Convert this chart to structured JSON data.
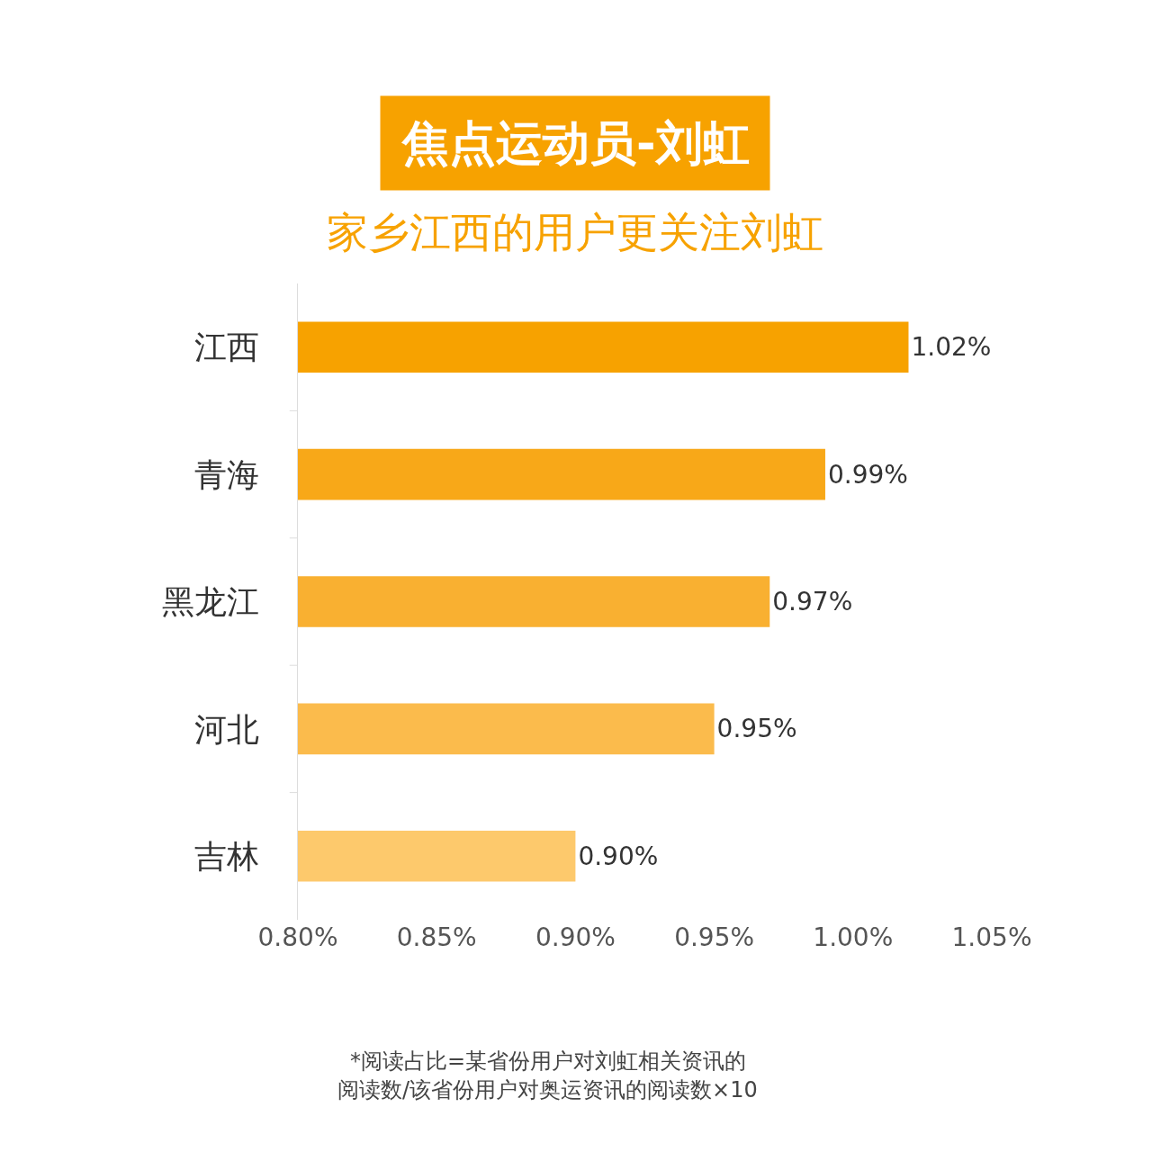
{
  "chart_data": {
    "type": "bar",
    "orientation": "horizontal",
    "title": "焦点运动员-刘虹",
    "subtitle": "家乡江西的用户更关注刘虹",
    "categories": [
      "江西",
      "青海",
      "黑龙江",
      "河北",
      "吉林"
    ],
    "values": [
      1.02,
      0.99,
      0.97,
      0.95,
      0.9
    ],
    "colors": [
      "#f7a200",
      "#f8a818",
      "#f9b031",
      "#fbbb4c",
      "#fdc96c"
    ],
    "value_labels": [
      "1.02%",
      "0.99%",
      "0.97%",
      "0.95%",
      "0.90%"
    ],
    "xlim": [
      0.8,
      1.05
    ],
    "xticks": [
      {
        "value": 0.8,
        "label": "0.80%"
      },
      {
        "value": 0.85,
        "label": "0.85%"
      },
      {
        "value": 0.9,
        "label": "0.90%"
      },
      {
        "value": 0.95,
        "label": "0.95%"
      },
      {
        "value": 1.0,
        "label": "1.00%"
      },
      {
        "value": 1.05,
        "label": "1.05%"
      }
    ],
    "annotations": [
      "*阅读占比=某省份用户对刘虹相关资讯的",
      "阅读数/该省份用户对奥运资讯的阅读数×10"
    ]
  }
}
